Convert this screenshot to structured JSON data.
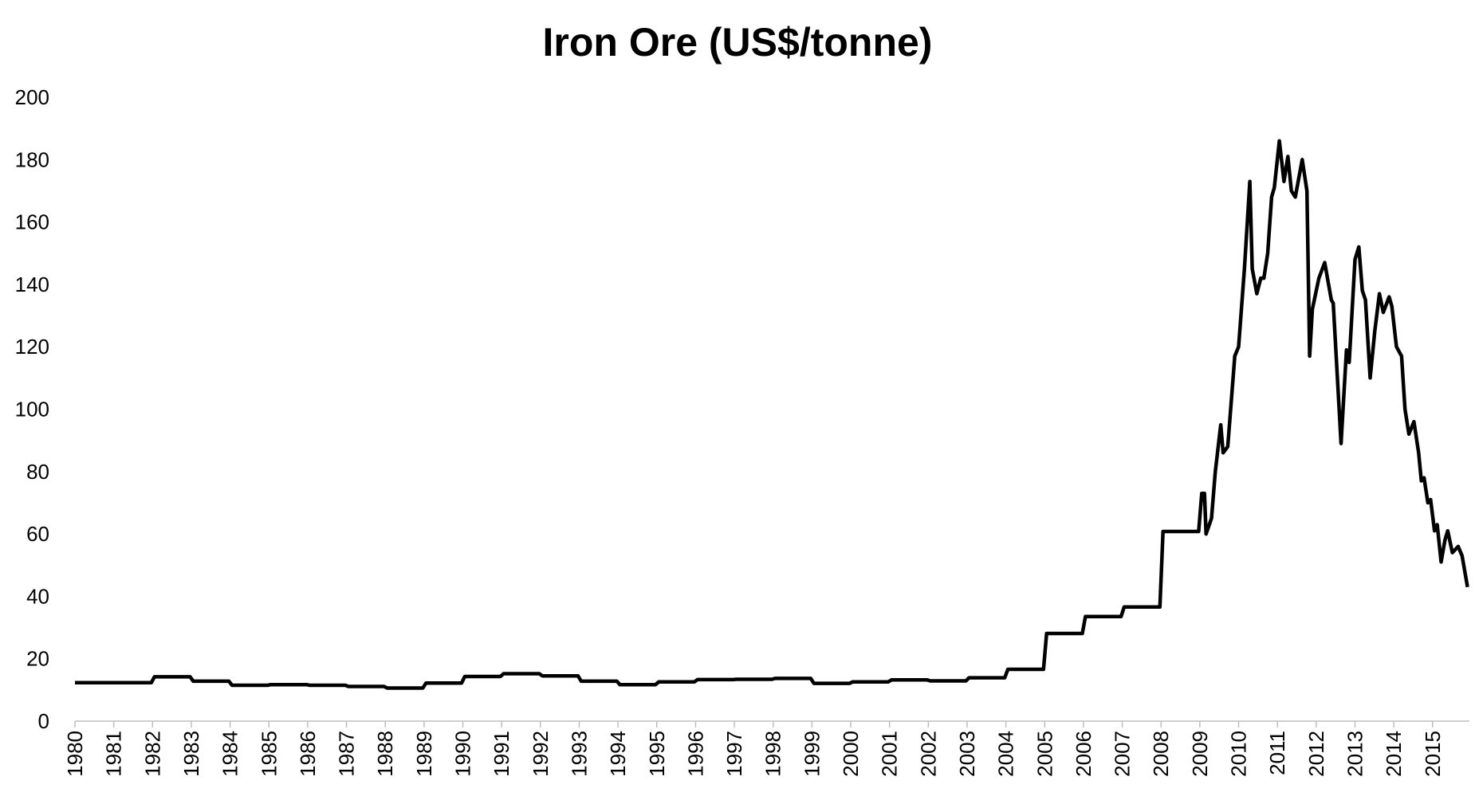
{
  "chart_data": {
    "type": "line",
    "title": "Iron Ore (US$/tonne)",
    "x": [
      1980,
      1981.97,
      1982.05,
      1982.97,
      1983.05,
      1983.97,
      1984.05,
      1984.97,
      1985.05,
      1985.97,
      1986.05,
      1986.97,
      1987.05,
      1987.97,
      1988.05,
      1988.97,
      1989.05,
      1989.97,
      1990.05,
      1990.97,
      1991.05,
      1991.97,
      1992.05,
      1992.97,
      1993.05,
      1993.97,
      1994.05,
      1994.97,
      1995.05,
      1995.97,
      1996.05,
      1996.97,
      1997.05,
      1997.97,
      1998.05,
      1998.97,
      1999.05,
      1999.97,
      2000.05,
      2000.97,
      2001.05,
      2001.97,
      2002.05,
      2002.97,
      2003.05,
      2003.97,
      2004.05,
      2004.97,
      2005.05,
      2005.97,
      2006.05,
      2006.97,
      2007.05,
      2007.97,
      2008.05,
      2008.97,
      2009.05,
      2009.12,
      2009.16,
      2009.3,
      2009.4,
      2009.54,
      2009.6,
      2009.72,
      2009.9,
      2010.0,
      2010.15,
      2010.29,
      2010.35,
      2010.47,
      2010.57,
      2010.65,
      2010.75,
      2010.85,
      2010.92,
      2011.05,
      2011.17,
      2011.27,
      2011.36,
      2011.46,
      2011.64,
      2011.76,
      2011.83,
      2011.9,
      2012.07,
      2012.22,
      2012.39,
      2012.44,
      2012.64,
      2012.78,
      2012.85,
      2013.0,
      2013.1,
      2013.19,
      2013.27,
      2013.39,
      2013.51,
      2013.63,
      2013.73,
      2013.88,
      2013.95,
      2014.07,
      2014.2,
      2014.29,
      2014.39,
      2014.52,
      2014.64,
      2014.71,
      2014.78,
      2014.88,
      2014.95,
      2015.05,
      2015.12,
      2015.22,
      2015.32,
      2015.39,
      2015.51,
      2015.66,
      2015.76,
      2015.9
    ],
    "series": [
      {
        "color": "#000000",
        "values": [
          12.3,
          12.3,
          14.2,
          14.2,
          12.8,
          12.8,
          11.5,
          11.5,
          11.7,
          11.7,
          11.5,
          11.5,
          11.1,
          11.1,
          10.6,
          10.6,
          12.2,
          12.2,
          14.3,
          14.3,
          15.2,
          15.2,
          14.5,
          14.5,
          12.8,
          12.8,
          11.7,
          11.7,
          12.6,
          12.6,
          13.3,
          13.3,
          13.4,
          13.4,
          13.7,
          13.7,
          12.1,
          12.1,
          12.6,
          12.6,
          13.2,
          13.2,
          12.9,
          12.9,
          13.9,
          13.9,
          16.6,
          16.6,
          28.1,
          28.1,
          33.5,
          33.5,
          36.6,
          36.6,
          60.8,
          60.8,
          73,
          73,
          60,
          65,
          80,
          95,
          86,
          88,
          117,
          120,
          145,
          173,
          145,
          137,
          142,
          142,
          150,
          168,
          171,
          186,
          173,
          181,
          170,
          168,
          180,
          170,
          117,
          132,
          142,
          147,
          135,
          134,
          89,
          119,
          115,
          148,
          152,
          138,
          135,
          110,
          125,
          137,
          131,
          136,
          133,
          120,
          117,
          100,
          92,
          96,
          86,
          77,
          78,
          70,
          71,
          61,
          63,
          51,
          58,
          61,
          54,
          56,
          53,
          43
        ]
      }
    ],
    "xlim": [
      1980,
      2015.95
    ],
    "xticks": [
      1980,
      1981,
      1982,
      1983,
      1984,
      1985,
      1986,
      1987,
      1988,
      1989,
      1990,
      1991,
      1992,
      1993,
      1994,
      1995,
      1996,
      1997,
      1998,
      1999,
      2000,
      2001,
      2002,
      2003,
      2004,
      2005,
      2006,
      2007,
      2008,
      2009,
      2010,
      2011,
      2012,
      2013,
      2014,
      2015
    ],
    "ylim": [
      0,
      200
    ],
    "yticks": [
      0,
      20,
      40,
      60,
      80,
      100,
      120,
      140,
      160,
      180,
      200
    ],
    "grid": false
  }
}
